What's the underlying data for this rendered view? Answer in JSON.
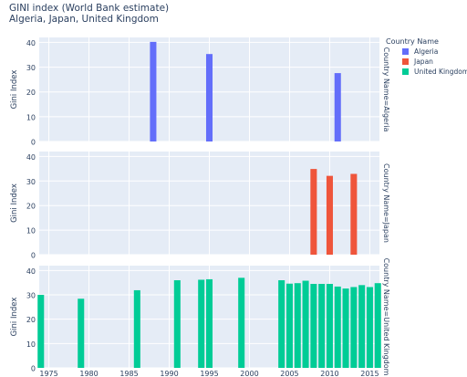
{
  "chart_data": {
    "type": "bar",
    "title": "GINI index (World Bank estimate)",
    "subtitle": "Algeria, Japan, United Kingdom",
    "ylabel": "Gini Index",
    "xlim": [
      1973.8,
      2016.2
    ],
    "ylim": [
      0,
      42
    ],
    "x_ticks": [
      1975,
      1980,
      1985,
      1990,
      1995,
      2000,
      2005,
      2010,
      2015
    ],
    "y_ticks": [
      0,
      10,
      20,
      30,
      40
    ],
    "grid": true,
    "legend": {
      "title": "Country Name",
      "position": "top-right",
      "entries": [
        {
          "name": "Algeria",
          "color": "#636efa"
        },
        {
          "name": "Japan",
          "color": "#ef553b"
        },
        {
          "name": "United Kingdom",
          "color": "#00cc96"
        }
      ]
    },
    "facets": [
      {
        "label": "Country Name=Algeria",
        "series": "Algeria",
        "color": "#636efa",
        "points": [
          {
            "x": 1988,
            "y": 40.2
          },
          {
            "x": 1995,
            "y": 35.3
          },
          {
            "x": 2011,
            "y": 27.6
          }
        ]
      },
      {
        "label": "Country Name=Japan",
        "series": "Japan",
        "color": "#ef553b",
        "points": [
          {
            "x": 2008,
            "y": 34.9
          },
          {
            "x": 2010,
            "y": 32.1
          },
          {
            "x": 2013,
            "y": 32.9
          }
        ]
      },
      {
        "label": "Country Name=United Kingdom",
        "series": "United Kingdom",
        "color": "#00cc96",
        "points": [
          {
            "x": 1974,
            "y": 30.0
          },
          {
            "x": 1979,
            "y": 28.4
          },
          {
            "x": 1986,
            "y": 31.9
          },
          {
            "x": 1991,
            "y": 36.0
          },
          {
            "x": 1994,
            "y": 36.2
          },
          {
            "x": 1995,
            "y": 36.4
          },
          {
            "x": 1999,
            "y": 37.0
          },
          {
            "x": 2004,
            "y": 36.0
          },
          {
            "x": 2005,
            "y": 34.6
          },
          {
            "x": 2006,
            "y": 34.8
          },
          {
            "x": 2007,
            "y": 35.8
          },
          {
            "x": 2008,
            "y": 34.5
          },
          {
            "x": 2009,
            "y": 34.5
          },
          {
            "x": 2010,
            "y": 34.5
          },
          {
            "x": 2011,
            "y": 33.4
          },
          {
            "x": 2012,
            "y": 32.6
          },
          {
            "x": 2013,
            "y": 33.2
          },
          {
            "x": 2014,
            "y": 34.0
          },
          {
            "x": 2015,
            "y": 33.2
          },
          {
            "x": 2016,
            "y": 34.8
          }
        ]
      }
    ]
  }
}
